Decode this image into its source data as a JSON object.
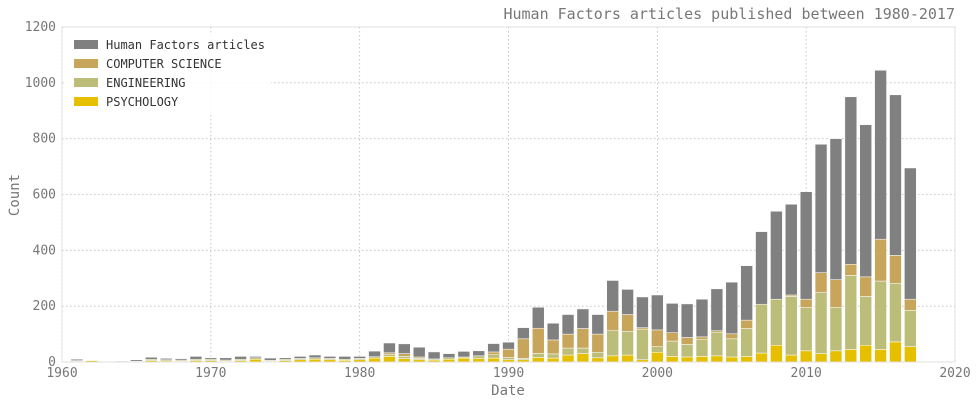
{
  "chart_data": {
    "type": "bar",
    "stacked": true,
    "title": "Human Factors articles published between 1980-2017",
    "xlabel": "Date",
    "ylabel": "Count",
    "xlim": [
      1960,
      2020
    ],
    "ylim": [
      0,
      1200
    ],
    "xticks": [
      1960,
      1970,
      1980,
      1990,
      2000,
      2010,
      2020
    ],
    "yticks": [
      0,
      200,
      400,
      600,
      800,
      1000,
      1200
    ],
    "grid": true,
    "legend_position": "top-left",
    "x": [
      1961,
      1962,
      1964,
      1965,
      1966,
      1967,
      1968,
      1969,
      1970,
      1971,
      1972,
      1973,
      1974,
      1975,
      1976,
      1977,
      1978,
      1979,
      1980,
      1981,
      1982,
      1983,
      1984,
      1985,
      1986,
      1987,
      1988,
      1989,
      1990,
      1991,
      1992,
      1993,
      1994,
      1995,
      1996,
      1997,
      1998,
      1999,
      2000,
      2001,
      2002,
      2003,
      2004,
      2005,
      2006,
      2007,
      2008,
      2009,
      2010,
      2011,
      2012,
      2013,
      2014,
      2015,
      2016,
      2017
    ],
    "series": [
      {
        "name": "PSYCHOLOGY",
        "color": "#e6c000",
        "values": [
          3,
          5,
          0,
          2,
          5,
          4,
          3,
          5,
          5,
          3,
          5,
          10,
          3,
          5,
          8,
          10,
          8,
          6,
          8,
          14,
          20,
          12,
          8,
          7,
          10,
          14,
          12,
          14,
          8,
          8,
          16,
          14,
          25,
          30,
          15,
          22,
          25,
          8,
          35,
          20,
          18,
          20,
          22,
          18,
          20,
          32,
          60,
          25,
          40,
          30,
          40,
          45,
          60,
          45,
          72,
          55
        ]
      },
      {
        "name": "ENGINEERING",
        "color": "#bdbd7a",
        "values": [
          2,
          0,
          0,
          1,
          5,
          4,
          4,
          5,
          5,
          4,
          5,
          5,
          3,
          5,
          5,
          5,
          5,
          4,
          5,
          5,
          8,
          8,
          5,
          4,
          5,
          4,
          10,
          12,
          8,
          5,
          15,
          15,
          25,
          20,
          20,
          90,
          85,
          110,
          20,
          55,
          45,
          60,
          85,
          65,
          100,
          175,
          165,
          210,
          155,
          220,
          155,
          265,
          175,
          245,
          210,
          130
        ]
      },
      {
        "name": "COMPUTER SCIENCE",
        "color": "#c7a55b",
        "values": [
          0,
          0,
          0,
          0,
          0,
          0,
          0,
          0,
          0,
          0,
          0,
          0,
          0,
          0,
          0,
          0,
          0,
          0,
          0,
          0,
          5,
          10,
          5,
          0,
          0,
          0,
          0,
          10,
          30,
          70,
          90,
          50,
          50,
          70,
          65,
          70,
          60,
          5,
          60,
          30,
          25,
          10,
          5,
          18,
          30,
          0,
          0,
          5,
          30,
          70,
          100,
          40,
          70,
          150,
          100,
          40
        ]
      },
      {
        "name": "Human Factors articles",
        "color": "#808080",
        "values": [
          5,
          0,
          3,
          5,
          7,
          5,
          5,
          10,
          5,
          8,
          10,
          5,
          8,
          5,
          7,
          10,
          7,
          10,
          7,
          20,
          35,
          35,
          35,
          25,
          15,
          20,
          18,
          30,
          25,
          40,
          75,
          60,
          70,
          70,
          70,
          110,
          90,
          110,
          125,
          105,
          120,
          135,
          150,
          185,
          195,
          260,
          315,
          325,
          385,
          460,
          505,
          600,
          545,
          605,
          575,
          470
        ]
      }
    ]
  }
}
